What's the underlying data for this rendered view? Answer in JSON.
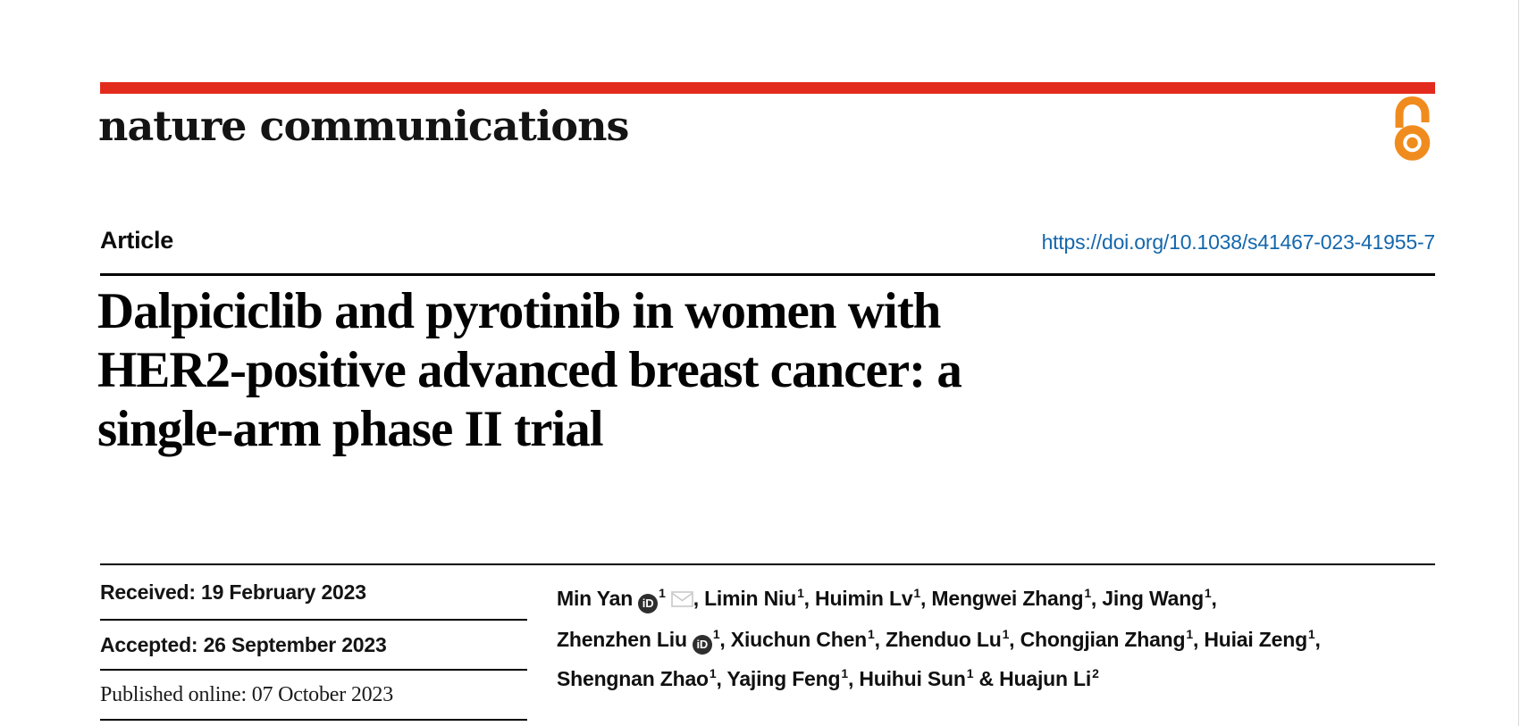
{
  "colors": {
    "accent_red": "#e32b1d",
    "link_blue": "#1467ac",
    "open_access_orange": "#f08c1e",
    "orcid_dark": "#2e2e2e",
    "envelope_gray": "#c8c8c8"
  },
  "masthead": {
    "journal_wordmark": "nature communications"
  },
  "article_header": {
    "type_label": "Article",
    "doi_link": "https://doi.org/10.1038/s41467-023-41955-7"
  },
  "title": {
    "lines": [
      "Dalpiciclib and pyrotinib in women with",
      "HER2-positive advanced breast cancer: a",
      "single-arm phase II trial"
    ]
  },
  "dates": {
    "items": [
      {
        "text": "Received: 19 February 2023"
      },
      {
        "text": "Accepted: 26 September 2023"
      },
      {
        "text": "Published online: 07 October 2023"
      }
    ]
  },
  "authors": {
    "orcid_glyph": "iD",
    "lines": [
      [
        {
          "name": "Min Yan",
          "orcid": true,
          "sup": "1",
          "mail": true,
          "sep": ", "
        },
        {
          "name": "Limin Niu",
          "sup": "1",
          "sep": ", "
        },
        {
          "name": "Huimin Lv",
          "sup": "1",
          "sep": ", "
        },
        {
          "name": "Mengwei Zhang",
          "sup": "1",
          "sep": ", "
        },
        {
          "name": "Jing Wang",
          "sup": "1",
          "sep": ","
        }
      ],
      [
        {
          "name": "Zhenzhen Liu",
          "orcid": true,
          "sup": "1",
          "sep": ", "
        },
        {
          "name": "Xiuchun Chen",
          "sup": "1",
          "sep": ", "
        },
        {
          "name": "Zhenduo Lu",
          "sup": "1",
          "sep": ", "
        },
        {
          "name": "Chongjian Zhang",
          "sup": "1",
          "sep": ", "
        },
        {
          "name": "Huiai Zeng",
          "sup": "1",
          "sep": ","
        }
      ],
      [
        {
          "name": "Shengnan Zhao",
          "sup": "1",
          "sep": ", "
        },
        {
          "name": "Yajing Feng",
          "sup": "1",
          "sep": ", "
        },
        {
          "name": "Huihui Sun",
          "sup": "1",
          "sep": " & "
        },
        {
          "name": "Huajun Li",
          "sup": "2",
          "sep": ""
        }
      ]
    ]
  }
}
